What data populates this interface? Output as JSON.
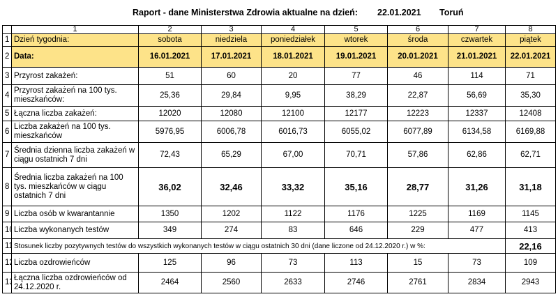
{
  "header": {
    "title": "Raport - dane Ministerstwa Zdrowia aktualne na dzień:",
    "date": "22.01.2021",
    "city": "Toruń"
  },
  "table": {
    "col_numbers": [
      "1",
      "2",
      "3",
      "4",
      "5",
      "6",
      "7",
      "8"
    ],
    "rows": [
      {
        "num": "1",
        "label": "Dzień tygodnia:",
        "values": [
          "sobota",
          "niedziela",
          "poniedziałek",
          "wtorek",
          "środa",
          "czwartek",
          "piątek"
        ]
      },
      {
        "num": "2",
        "label": "Data:",
        "values": [
          "16.01.2021",
          "17.01.2021",
          "18.01.2021",
          "19.01.2021",
          "20.01.2021",
          "21.01.2021",
          "22.01.2021"
        ]
      },
      {
        "num": "3",
        "label": "Przyrost zakażeń:",
        "values": [
          "51",
          "60",
          "20",
          "77",
          "46",
          "114",
          "71"
        ]
      },
      {
        "num": "4",
        "label": "Przyrost zakażeń na 100 tys. mieszkańców:",
        "values": [
          "25,36",
          "29,84",
          "9,95",
          "38,29",
          "22,87",
          "56,69",
          "35,30"
        ]
      },
      {
        "num": "5",
        "label": "Łączna liczba zakażeń:",
        "values": [
          "12020",
          "12080",
          "12100",
          "12177",
          "12223",
          "12337",
          "12408"
        ]
      },
      {
        "num": "6",
        "label": "Liczba zakażeń na 100 tys. mieszkańców",
        "values": [
          "5976,95",
          "6006,78",
          "6016,73",
          "6055,02",
          "6077,89",
          "6134,58",
          "6169,88"
        ]
      },
      {
        "num": "7",
        "label": "Średnia dzienna liczba zakażeń w ciągu ostatnich 7 dni",
        "values": [
          "72,43",
          "65,29",
          "67,00",
          "70,71",
          "57,86",
          "62,86",
          "62,71"
        ]
      },
      {
        "num": "8",
        "label": "Średnia liczba zakażeń na 100 tys. mieszkańców w ciągu ostatnich 7 dni",
        "values": [
          "36,02",
          "32,46",
          "33,32",
          "35,16",
          "28,77",
          "31,26",
          "31,18"
        ]
      },
      {
        "num": "9",
        "label": "Liczba osób w kwarantannie",
        "values": [
          "1350",
          "1202",
          "1122",
          "1176",
          "1225",
          "1169",
          "1145"
        ]
      },
      {
        "num": "10",
        "label": "Liczba wykonanych testów",
        "values": [
          "349",
          "274",
          "83",
          "646",
          "229",
          "477",
          "413"
        ]
      },
      {
        "num": "11",
        "label": "Stosunek liczby pozytywnych testów do wszystkich wykonanych testów w ciągu ostatnich 30 dni (dane liczone od 24.12.2020 r.) w %:",
        "values": [
          "22,16"
        ]
      },
      {
        "num": "12",
        "label": "Liczba ozdrowieńców",
        "values": [
          "125",
          "96",
          "73",
          "113",
          "15",
          "73",
          "109"
        ]
      },
      {
        "num": "13",
        "label": "Łączna liczba ozdrowieńców od 24.12.2020 r.",
        "values": [
          "2464",
          "2560",
          "2633",
          "2746",
          "2761",
          "2834",
          "2943"
        ]
      }
    ]
  },
  "colors": {
    "header_fill": "#fde389",
    "border": "#000000"
  }
}
